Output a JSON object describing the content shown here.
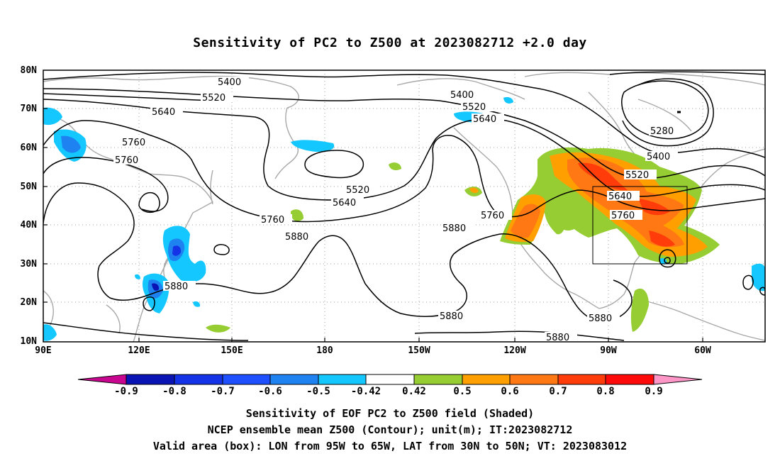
{
  "title": "Sensitivity of PC2 to Z500 at 2023082712 +2.0 day",
  "lat_labels": [
    "80N",
    "70N",
    "60N",
    "50N",
    "40N",
    "30N",
    "20N",
    "10N"
  ],
  "lon_labels": [
    "90E",
    "120E",
    "150E",
    "180",
    "150W",
    "120W",
    "90W",
    "60W"
  ],
  "contour_labels": [
    "5400",
    "5520",
    "5640",
    "5760",
    "5760",
    "5880",
    "5400",
    "5520",
    "5640",
    "5520",
    "5640",
    "5760",
    "5880",
    "5760",
    "5880",
    "5280",
    "5400",
    "5520",
    "5640",
    "5760",
    "5880",
    "5880",
    "5880"
  ],
  "colorbar": {
    "labels": [
      "-0.9",
      "-0.8",
      "-0.7",
      "-0.6",
      "-0.5",
      "-0.42",
      "0.42",
      "0.5",
      "0.6",
      "0.7",
      "0.8",
      "0.9"
    ],
    "colors": [
      "#c8068f",
      "#0a14b4",
      "#1432e6",
      "#1e50ff",
      "#1e82f0",
      "#14c8ff",
      "#ffffff",
      "#96cd32",
      "#ffa000",
      "#ff7814",
      "#ff3c0a",
      "#ff0a0a",
      "#ff96c8"
    ]
  },
  "footer": [
    "Sensitivity of EOF PC2 to Z500 field (Shaded)",
    "NCEP ensemble mean Z500 (Contour); unit(m); IT:2023082712",
    "Valid area (box): LON from 95W to 65W, LAT from 30N to 50N; VT: 2023083012"
  ]
}
